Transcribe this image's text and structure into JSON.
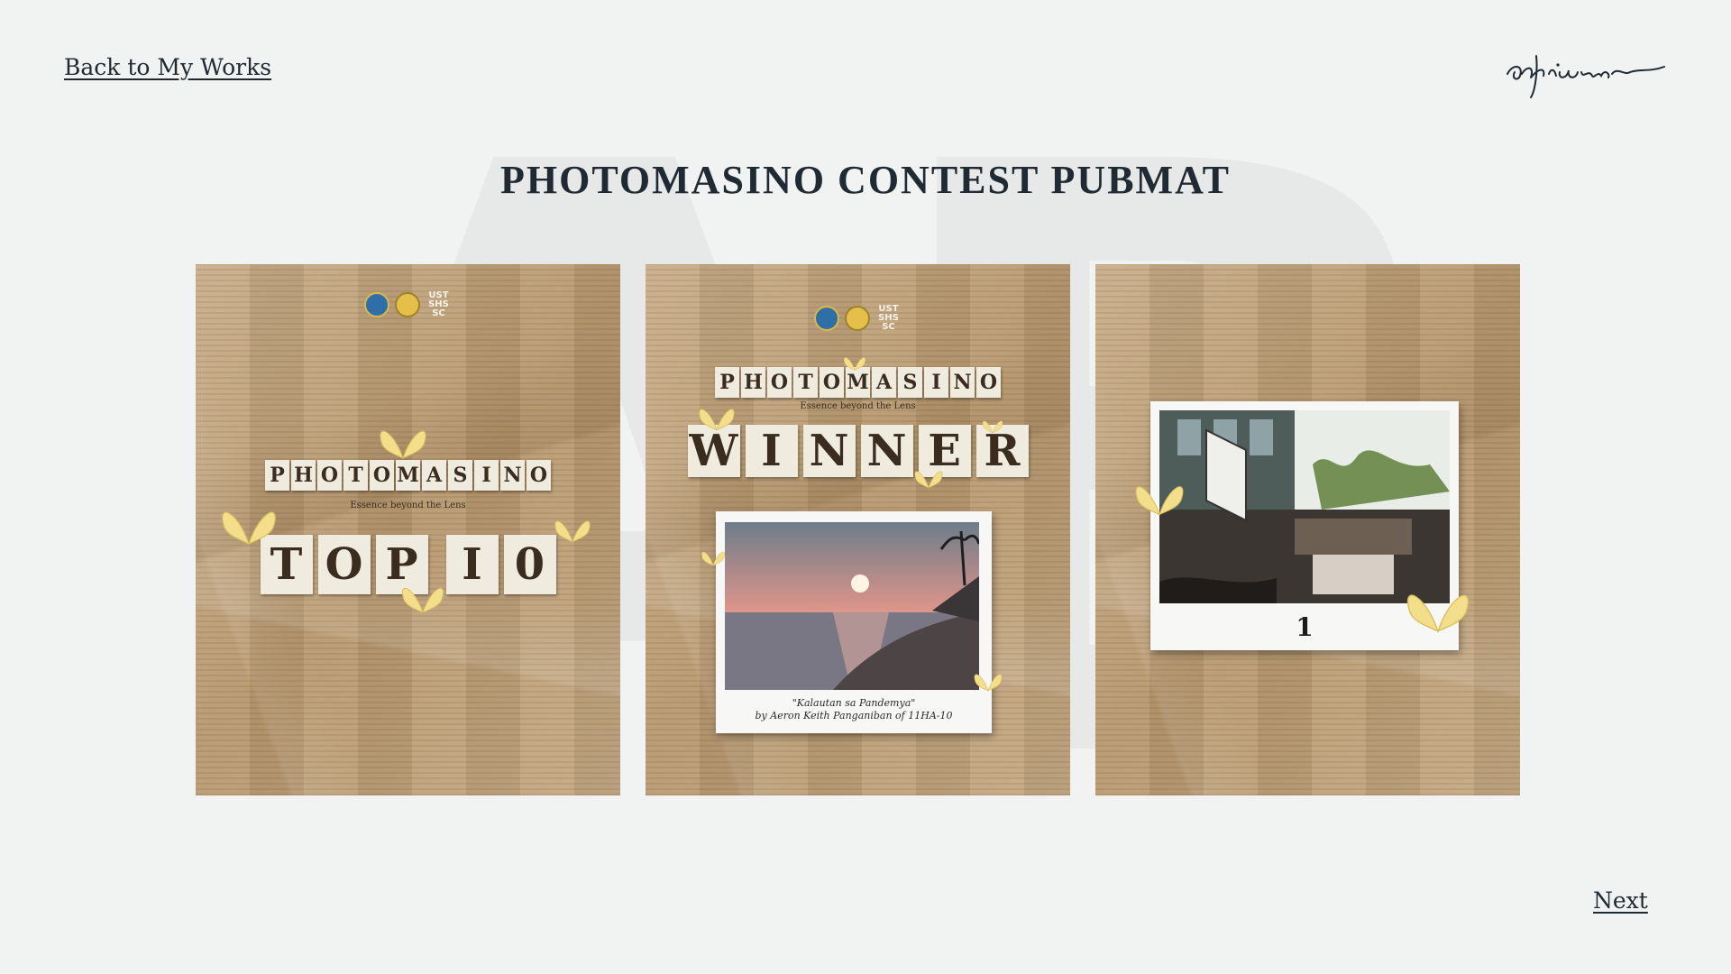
{
  "watermark": "AB",
  "nav": {
    "back_label": "Back to My Works",
    "next_label": "Next",
    "signature": "adrianne"
  },
  "page": {
    "title": "PHOTOMASINO CONTEST PUBMAT"
  },
  "panels": [
    {
      "logo_text": "UST SHS SC",
      "headline_letters": [
        "P",
        "H",
        "O",
        "T",
        "O",
        "M",
        "A",
        "S",
        "I",
        "N",
        "O"
      ],
      "tagline": "Essence beyond the Lens",
      "big_letters": [
        "T",
        "O",
        "P",
        "I",
        "0"
      ]
    },
    {
      "logo_text": "UST SHS SC",
      "headline_letters": [
        "P",
        "H",
        "O",
        "T",
        "O",
        "M",
        "A",
        "S",
        "I",
        "N",
        "O"
      ],
      "tagline": "Essence beyond the Lens",
      "big_letters": [
        "W",
        "I",
        "N",
        "N",
        "E",
        "R"
      ],
      "caption_title": "\"Kalautan sa Pandemya\"",
      "caption_author": "by Aeron Keith Panganiban of 11HA-10"
    },
    {
      "number": "1"
    }
  ],
  "colors": {
    "background": "#f1f2f2",
    "text": "#1f2a33",
    "paper": "#bfa27c",
    "butterfly": "#f3de8c"
  }
}
